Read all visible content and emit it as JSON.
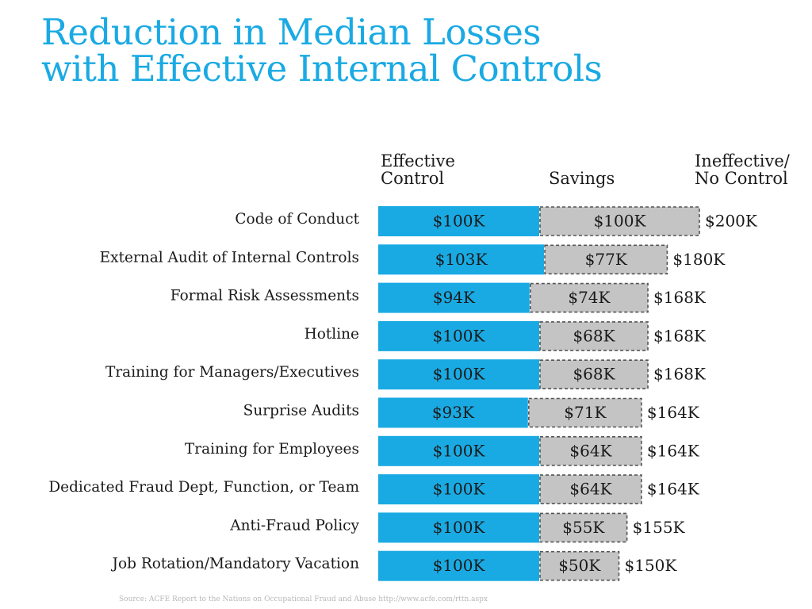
{
  "title": {
    "line1": "Reduction in Median Losses",
    "line2": "with Effective Internal Controls"
  },
  "column_headers": {
    "effective": {
      "line1": "Effective",
      "line2": "Control"
    },
    "savings": {
      "line1": "Savings"
    },
    "ineffective": {
      "line1": "Ineffective/",
      "line2": "No Control"
    }
  },
  "colors": {
    "title": "#1aaae3",
    "effective_bar": "#1aaae3",
    "savings_bar": "#c4c4c4",
    "savings_border": "#555555",
    "text": "#1a1a1a"
  },
  "chart_data": {
    "type": "bar",
    "orientation": "horizontal",
    "stacked": true,
    "categories": [
      "Code of Conduct",
      "External Audit of Internal Controls",
      "Formal Risk Assessments",
      "Hotline",
      "Training for Managers/Executives",
      "Surprise Audits",
      "Training for Employees",
      "Dedicated Fraud Dept, Function, or Team",
      "Anti-Fraud Policy",
      "Job Rotation/Mandatory Vacation"
    ],
    "series": [
      {
        "name": "Effective Control",
        "values": [
          100,
          103,
          94,
          100,
          100,
          93,
          100,
          100,
          100,
          100
        ],
        "labels": [
          "$100K",
          "$103K",
          "$94K",
          "$100K",
          "$100K",
          "$93K",
          "$100K",
          "$100K",
          "$100K",
          "$100K"
        ]
      },
      {
        "name": "Savings",
        "values": [
          100,
          77,
          74,
          68,
          68,
          71,
          64,
          64,
          55,
          50
        ],
        "labels": [
          "$100K",
          "$77K",
          "$74K",
          "$68K",
          "$68K",
          "$71K",
          "$64K",
          "$64K",
          "$55K",
          "$50K"
        ]
      }
    ],
    "totals": {
      "name": "Ineffective/ No Control",
      "values": [
        200,
        180,
        168,
        168,
        168,
        164,
        164,
        164,
        155,
        150
      ],
      "labels": [
        "$200K",
        "$180K",
        "$168K",
        "$168K",
        "$168K",
        "$164K",
        "$164K",
        "$164K",
        "$155K",
        "$150K"
      ]
    },
    "xlim": [
      0,
      200
    ],
    "grid": false,
    "legend": "column headers above bars"
  },
  "source": "Source: ACFE Report to the Nations on Occupational Fraud and Abuse http://www.acfe.com/rttn.aspx"
}
